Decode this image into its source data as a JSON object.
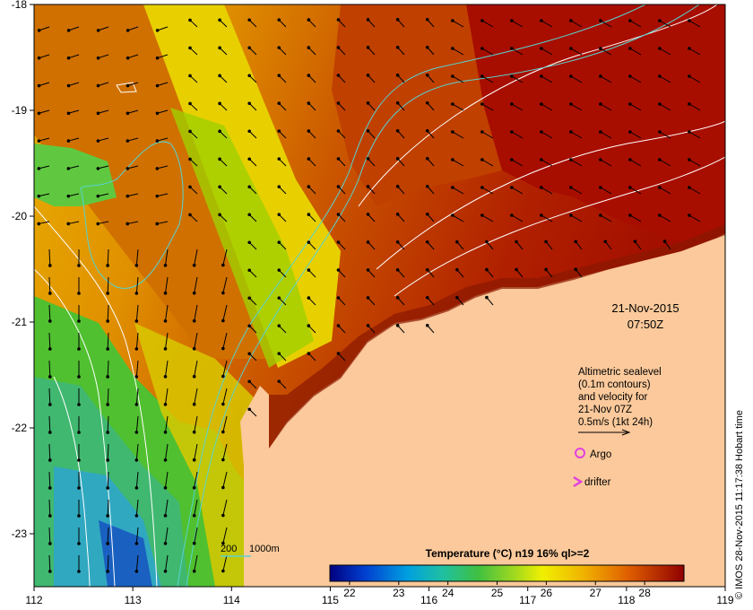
{
  "map": {
    "x_ticks": [
      "112",
      "113",
      "114",
      "115",
      "116",
      "117",
      "118",
      "119"
    ],
    "y_ticks": [
      "-18",
      "-19",
      "-20",
      "-21",
      "-22",
      "-23"
    ],
    "lon_range": [
      112,
      119
    ],
    "lat_range": [
      -23.5,
      -18
    ]
  },
  "datetime": {
    "date": "21-Nov-2015",
    "time": "07:50Z"
  },
  "legend": {
    "altimetry_lines": [
      "Altimetric sealevel",
      "(0.1m contours)",
      "and velocity for",
      "21-Nov 07Z",
      "0.5m/s (1kt 24h)"
    ],
    "argo_label": "Argo",
    "drifter_label": "drifter"
  },
  "bathymetry": {
    "label_200": "200",
    "label_1000": "1000m"
  },
  "colorbar": {
    "title": "Temperature (°C) n19 16% ql>=2",
    "ticks": [
      "22",
      "23",
      "24",
      "25",
      "26",
      "27",
      "28"
    ],
    "min": 21.6,
    "max": 28.8
  },
  "credit": "© IMOS 28-Nov-2015 11:17:38 Hobart time",
  "colors": {
    "land": "#fbc99b",
    "warm": "#a80e00",
    "cold": "#1a60c0",
    "contour": "#ffffff",
    "bathy": "#57d3d0",
    "argo": "#e040e0"
  }
}
